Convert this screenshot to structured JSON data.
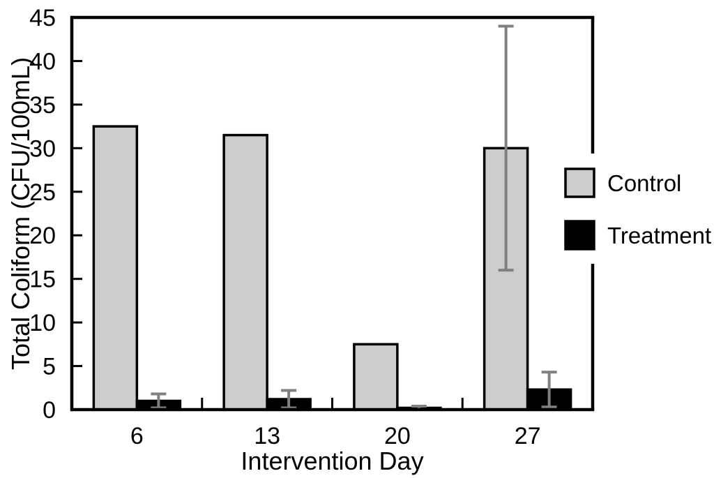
{
  "figure": {
    "background": "#ffffff"
  },
  "chart_data": {
    "type": "bar",
    "title": "",
    "xlabel": "Intervention Day",
    "ylabel": "Total Coliform (CFU/100mL)",
    "categories": [
      "6",
      "13",
      "20",
      "27"
    ],
    "ylim": [
      0,
      45
    ],
    "yticks": [
      0,
      5,
      10,
      15,
      20,
      25,
      30,
      35,
      40,
      45
    ],
    "grid": false,
    "legend": {
      "position": "right-inside-border-gap",
      "entries": [
        "Control",
        "Treatment"
      ]
    },
    "series": [
      {
        "name": "Control",
        "fill": "#cccccc",
        "values": [
          32.5,
          31.5,
          7.5,
          30
        ],
        "error_plus": [
          0,
          0,
          0,
          14
        ],
        "error_minus": [
          0,
          0,
          0,
          14
        ]
      },
      {
        "name": "Treatment",
        "fill": "#000000",
        "values": [
          1.0,
          1.2,
          0.2,
          2.3
        ],
        "error_plus": [
          0.8,
          1.0,
          0.2,
          2.0
        ],
        "error_minus": [
          0.8,
          1.0,
          0.2,
          2.0
        ]
      }
    ],
    "colors": {
      "axis": "#000000",
      "bar_outline": "#000000",
      "error_bar": "#808080"
    }
  }
}
